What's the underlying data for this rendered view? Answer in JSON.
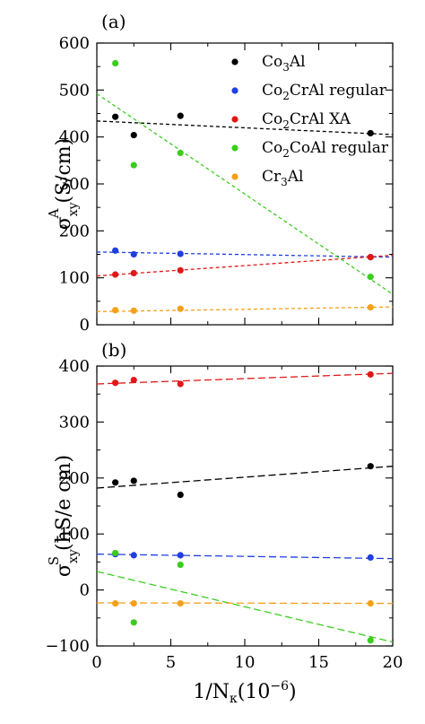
{
  "figure": {
    "xlabel_main": "1/N",
    "xlabel_sub": "κ",
    "xlabel_tail": "(10",
    "xlabel_exp": "−6",
    "xlabel_close": ")"
  },
  "chart_data": [
    {
      "type": "scatter",
      "panel_label": "(a)",
      "ylabel_main": "σ",
      "ylabel_sub": "xy",
      "ylabel_sup": "A",
      "ylabel_unit": "(S/cm)",
      "xlim": [
        0,
        20
      ],
      "ylim": [
        0,
        600
      ],
      "xticks": [
        0,
        5,
        10,
        15,
        20
      ],
      "yticks": [
        0,
        100,
        200,
        300,
        400,
        500,
        600
      ],
      "legend_position": "top-right",
      "series": [
        {
          "name": "Co3Al",
          "legend_base": "Co",
          "legend_sub": "3",
          "legend_rest": "Al",
          "color": "#000000",
          "x": [
            1.25,
            2.5,
            5.65,
            18.5
          ],
          "y": [
            443,
            404,
            445,
            408
          ],
          "fit": {
            "x": [
              0,
              20
            ],
            "y": [
              434,
              405
            ],
            "dash": "4,3"
          }
        },
        {
          "name": "Co2CrAl regular",
          "legend_base": "Co",
          "legend_sub": "2",
          "legend_rest": "CrAl regular",
          "color": "#1f3fe0",
          "x": [
            1.25,
            2.5,
            5.65,
            18.5
          ],
          "y": [
            158,
            150,
            151,
            144
          ],
          "fit": {
            "x": [
              0,
              20
            ],
            "y": [
              155,
              144
            ],
            "dash": "4,3"
          }
        },
        {
          "name": "Co2CrAl XA",
          "legend_base": "Co",
          "legend_sub": "2",
          "legend_rest": "CrAl XA",
          "color": "#e01818",
          "x": [
            1.25,
            2.5,
            5.65,
            18.5
          ],
          "y": [
            107,
            110,
            116,
            144
          ],
          "fit": {
            "x": [
              0,
              20
            ],
            "y": [
              104,
              148
            ],
            "dash": "4,3"
          }
        },
        {
          "name": "Co2CoAl regular",
          "legend_base": "Co",
          "legend_sub": "2",
          "legend_rest": "CoAl regular",
          "color": "#3ccc1e",
          "x": [
            1.25,
            2.5,
            5.65,
            18.5
          ],
          "y": [
            557,
            340,
            366,
            102
          ],
          "fit": {
            "x": [
              0,
              20
            ],
            "y": [
              492,
              65
            ],
            "dash": "4,3"
          }
        },
        {
          "name": "Cr3Al",
          "legend_base": "Cr",
          "legend_sub": "3",
          "legend_rest": "Al",
          "color": "#f5a01a",
          "x": [
            1.25,
            2.5,
            5.65,
            18.5
          ],
          "y": [
            31,
            30,
            34,
            37
          ],
          "fit": {
            "x": [
              0,
              20
            ],
            "y": [
              28,
              38
            ],
            "dash": "4,3"
          }
        }
      ]
    },
    {
      "type": "scatter",
      "panel_label": "(b)",
      "ylabel_main": "σ",
      "ylabel_sub": "xy",
      "ylabel_sup": "S",
      "ylabel_unit": "(ħS/e cm)",
      "xlim": [
        0,
        20
      ],
      "ylim": [
        -100,
        400
      ],
      "xticks": [
        0,
        5,
        10,
        15,
        20
      ],
      "yticks": [
        -100,
        0,
        100,
        200,
        300,
        400
      ],
      "series": [
        {
          "color": "#e01818",
          "x": [
            1.25,
            2.5,
            5.65,
            18.5
          ],
          "y": [
            370,
            375,
            368,
            385
          ],
          "fit": {
            "x": [
              0,
              20
            ],
            "y": [
              368,
              387
            ],
            "dash": "8,4"
          }
        },
        {
          "color": "#000000",
          "x": [
            1.25,
            2.5,
            5.65,
            18.5
          ],
          "y": [
            192,
            195,
            170,
            221
          ],
          "fit": {
            "x": [
              0,
              20
            ],
            "y": [
              182,
              221
            ],
            "dash": "8,4"
          }
        },
        {
          "color": "#1f3fe0",
          "x": [
            1.25,
            2.5,
            5.65,
            18.5
          ],
          "y": [
            64,
            62,
            62,
            58
          ],
          "fit": {
            "x": [
              0,
              20
            ],
            "y": [
              64,
              56
            ],
            "dash": "8,4"
          }
        },
        {
          "color": "#3ccc1e",
          "x": [
            1.25,
            2.5,
            5.65,
            18.5
          ],
          "y": [
            66,
            -58,
            45,
            -90
          ],
          "fit": {
            "x": [
              0,
              20
            ],
            "y": [
              33,
              -93
            ],
            "dash": "8,4"
          }
        },
        {
          "color": "#f5a01a",
          "x": [
            1.25,
            2.5,
            5.65,
            18.5
          ],
          "y": [
            -24,
            -24,
            -24,
            -24
          ],
          "fit": {
            "x": [
              0,
              20
            ],
            "y": [
              -23,
              -24
            ],
            "dash": "8,4"
          }
        }
      ]
    }
  ]
}
